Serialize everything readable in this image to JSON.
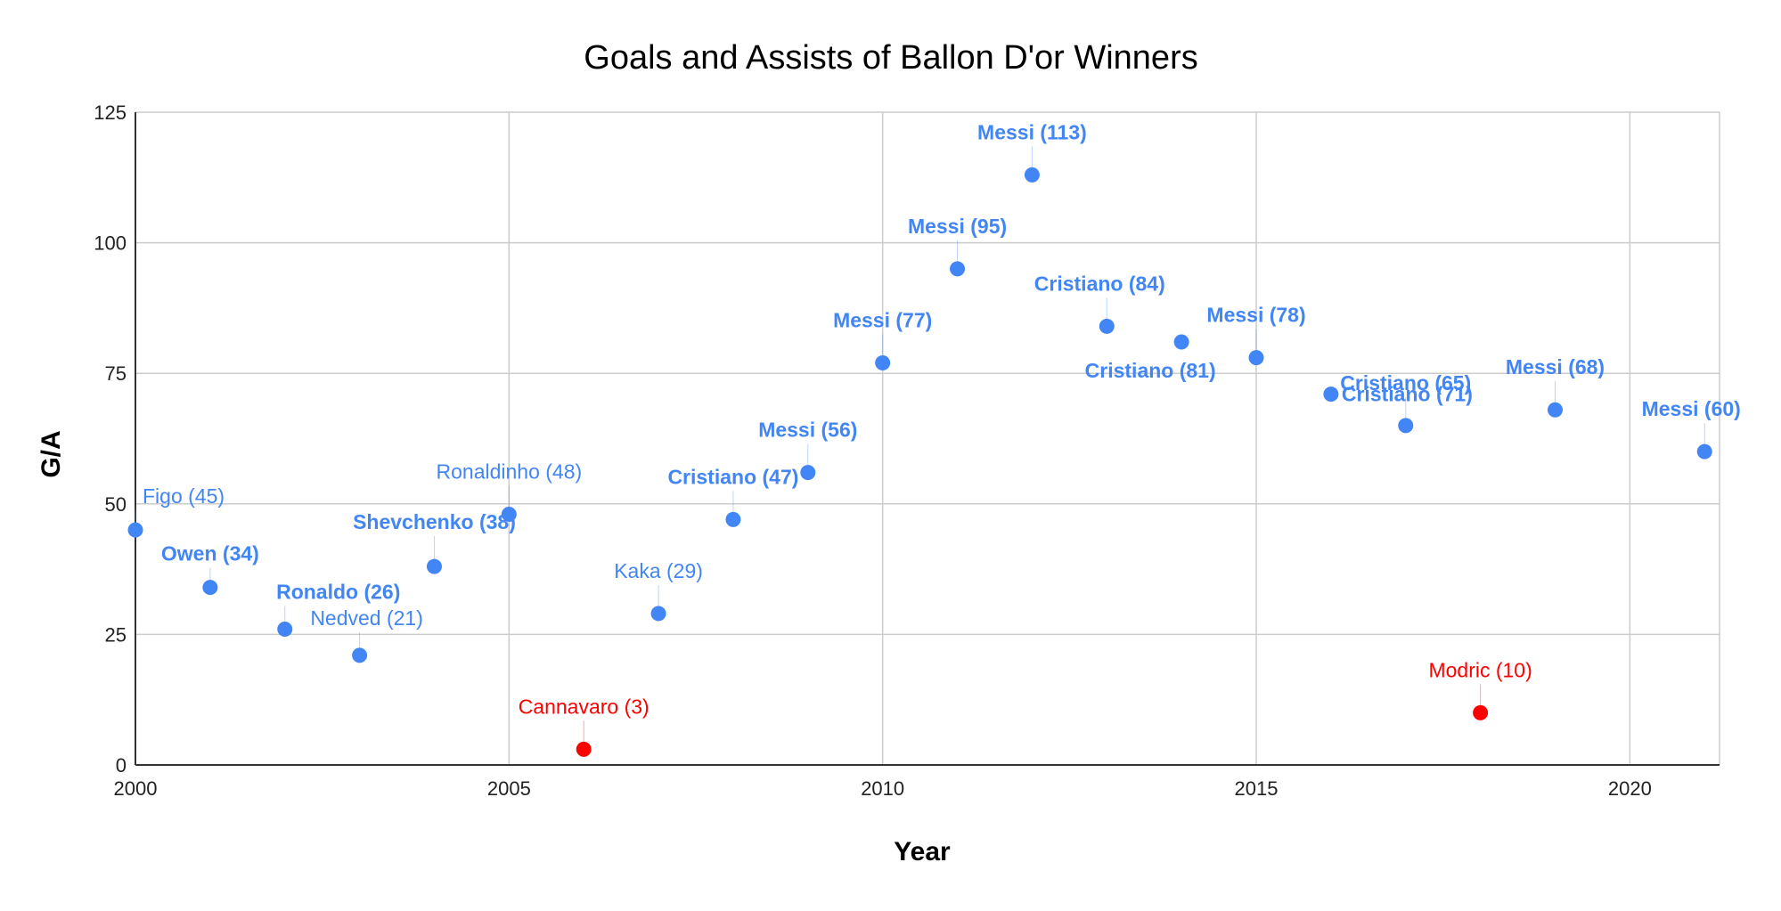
{
  "chart_data": {
    "type": "scatter",
    "title": "Goals and Assists of Ballon D'or Winners",
    "xlabel": "Year",
    "ylabel": "G/A",
    "xlim": [
      2000,
      2021.2
    ],
    "ylim": [
      0,
      125
    ],
    "x_ticks": [
      2000,
      2005,
      2010,
      2015,
      2020
    ],
    "y_ticks": [
      0,
      25,
      50,
      75,
      100,
      125
    ],
    "grid": true,
    "legend": "none",
    "colors": {
      "default": "#4285f4",
      "highlight": "#ff0000"
    },
    "points": [
      {
        "x": 2000,
        "y": 45,
        "label": "Figo (45)",
        "color": "#4285f4",
        "bold": false
      },
      {
        "x": 2001,
        "y": 34,
        "label": "Owen (34)",
        "color": "#4285f4",
        "bold": true
      },
      {
        "x": 2002,
        "y": 26,
        "label": "Ronaldo (26)",
        "color": "#4285f4",
        "bold": true
      },
      {
        "x": 2003,
        "y": 21,
        "label": "Nedved (21)",
        "color": "#4285f4",
        "bold": false
      },
      {
        "x": 2004,
        "y": 38,
        "label": "Shevchenko (38)",
        "color": "#4285f4",
        "bold": true
      },
      {
        "x": 2005,
        "y": 48,
        "label": "Ronaldinho (48)",
        "color": "#4285f4",
        "bold": false
      },
      {
        "x": 2006,
        "y": 3,
        "label": "Cannavaro (3)",
        "color": "#ff0000",
        "bold": false
      },
      {
        "x": 2007,
        "y": 29,
        "label": "Kaka (29)",
        "color": "#4285f4",
        "bold": false
      },
      {
        "x": 2008,
        "y": 47,
        "label": "Cristiano (47)",
        "color": "#4285f4",
        "bold": true
      },
      {
        "x": 2009,
        "y": 56,
        "label": "Messi (56)",
        "color": "#4285f4",
        "bold": true
      },
      {
        "x": 2010,
        "y": 77,
        "label": "Messi (77)",
        "color": "#4285f4",
        "bold": true
      },
      {
        "x": 2011,
        "y": 95,
        "label": "Messi (95)",
        "color": "#4285f4",
        "bold": true
      },
      {
        "x": 2012,
        "y": 113,
        "label": "Messi (113)",
        "color": "#4285f4",
        "bold": true
      },
      {
        "x": 2013,
        "y": 84,
        "label": "Cristiano (84)",
        "color": "#4285f4",
        "bold": true
      },
      {
        "x": 2014,
        "y": 81,
        "label": "Cristiano (81)",
        "color": "#4285f4",
        "bold": true
      },
      {
        "x": 2015,
        "y": 78,
        "label": "Messi (78)",
        "color": "#4285f4",
        "bold": true
      },
      {
        "x": 2016,
        "y": 71,
        "label": "Cristiano (71)",
        "color": "#4285f4",
        "bold": true
      },
      {
        "x": 2017,
        "y": 65,
        "label": "Cristiano (65)",
        "color": "#4285f4",
        "bold": true
      },
      {
        "x": 2018,
        "y": 10,
        "label": "Modric (10)",
        "color": "#ff0000",
        "bold": false
      },
      {
        "x": 2019,
        "y": 68,
        "label": "Messi (68)",
        "color": "#4285f4",
        "bold": true
      },
      {
        "x": 2021,
        "y": 60,
        "label": "Messi (60)",
        "color": "#4285f4",
        "bold": true
      }
    ]
  }
}
